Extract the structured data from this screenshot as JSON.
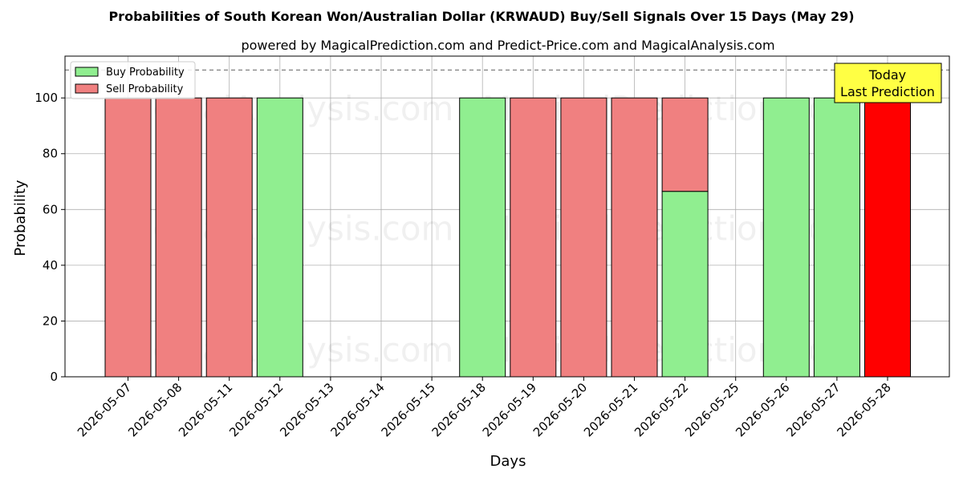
{
  "chart_data": {
    "type": "bar",
    "title": "Probabilities of South Korean Won/Australian Dollar (KRWAUD) Buy/Sell Signals Over 15 Days (May 29)",
    "subtitle": "powered by MagicalPrediction.com and Predict-Price.com and MagicalAnalysis.com",
    "xlabel": "Days",
    "ylabel": "Probability",
    "ylim": [
      0,
      115
    ],
    "yticks": [
      0,
      20,
      40,
      60,
      80,
      100
    ],
    "grid": true,
    "stacked": true,
    "legend_position": "top-left",
    "reference_line": 110,
    "categories": [
      "2026-05-07",
      "2026-05-08",
      "2026-05-11",
      "2026-05-12",
      "2026-05-13",
      "2026-05-14",
      "2026-05-15",
      "2026-05-18",
      "2026-05-19",
      "2026-05-20",
      "2026-05-21",
      "2026-05-22",
      "2026-05-25",
      "2026-05-26",
      "2026-05-27",
      "2026-05-28"
    ],
    "series": [
      {
        "name": "Buy Probability",
        "color": "#90ee90",
        "values": [
          0,
          0,
          0,
          100,
          0,
          0,
          0,
          100,
          0,
          0,
          0,
          66.5,
          0,
          100,
          100,
          0
        ]
      },
      {
        "name": "Sell Probability",
        "color": "#f08080",
        "values": [
          100,
          100,
          100,
          0,
          0,
          0,
          0,
          0,
          100,
          100,
          100,
          33.5,
          0,
          0,
          0,
          100
        ]
      }
    ],
    "highlight": {
      "category": "2026-05-28",
      "color": "#ff0000"
    },
    "annotation": {
      "lines": [
        "Today",
        "Last Prediction"
      ],
      "color": "#ffff44"
    },
    "watermarks": [
      "MagicalAnalysis.com",
      "MagicalPrediction.com"
    ]
  }
}
